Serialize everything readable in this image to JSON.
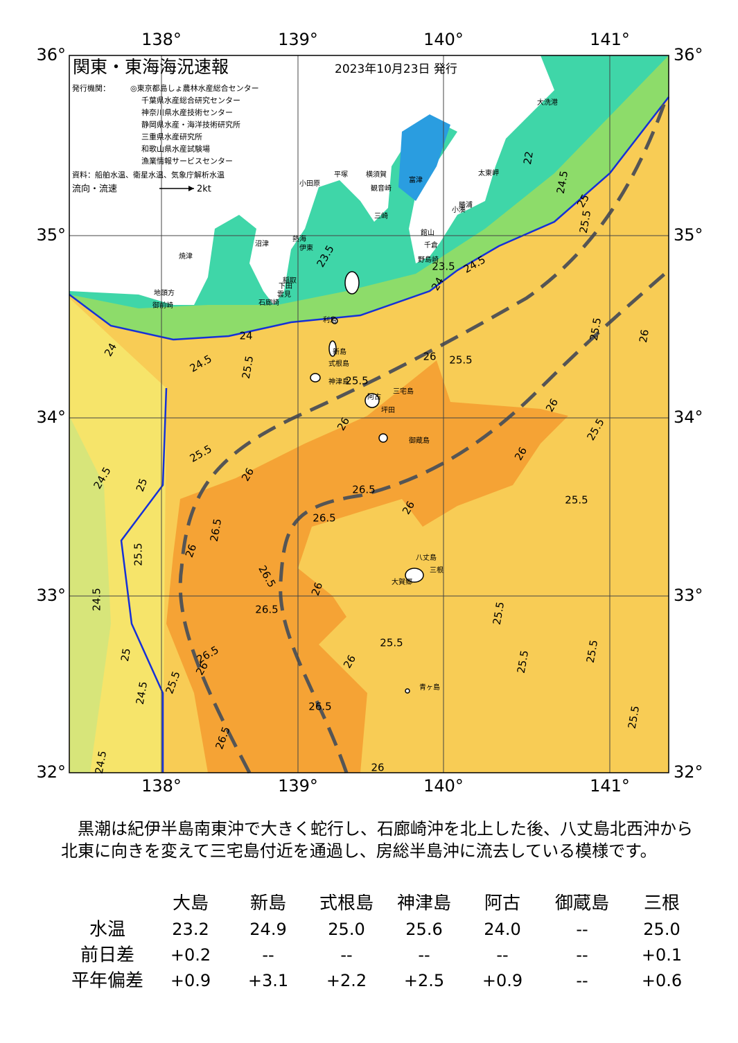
{
  "map": {
    "title": "関東・東海海況速報",
    "date": "2023年10月23日 発行",
    "issuer_label": "発行機関：",
    "issuers": [
      "◎東京都島しょ農林水産総合センター",
      "千葉県水産総合研究センター",
      "神奈川県水産技術センター",
      "静岡県水産・海洋技術研究所",
      "三重県水産研究所",
      "和歌山県水産試験場",
      "漁業情報サービスセンター"
    ],
    "source": "資料：船舶水温、衛星水温、気象庁解析水温",
    "flow_label": "流向・流速",
    "flow_scale": "2kt",
    "lon_labels": [
      "138°",
      "139°",
      "140°",
      "141°"
    ],
    "lat_labels": [
      "36°",
      "35°",
      "34°",
      "33°",
      "32°"
    ],
    "place_names": [
      "大洗港",
      "太東岬",
      "勝浦",
      "小湊",
      "館山",
      "千倉",
      "野島崎",
      "富津",
      "観音崎",
      "横須賀",
      "三崎",
      "平塚",
      "小田原",
      "熱海",
      "伊東",
      "稲取",
      "下田",
      "雲見",
      "石廊崎",
      "沼津",
      "焼津",
      "地頭方",
      "御前崎",
      "利島",
      "新島",
      "式根島",
      "神津島",
      "三宅島",
      "阿古",
      "坪田",
      "御蔵島",
      "八丈島",
      "三根",
      "大賀郷",
      "青ヶ島"
    ],
    "contour_labels": [
      "24",
      "24",
      "24.5",
      "25.5",
      "25.5",
      "26",
      "25.5",
      "24.5",
      "25",
      "25.5",
      "26",
      "26",
      "26.5",
      "26.5",
      "26",
      "26",
      "25.5",
      "26",
      "25.5",
      "25.5",
      "26",
      "26",
      "26.5",
      "25.5",
      "26.5",
      "26",
      "26.5",
      "24.5",
      "25",
      "26.5",
      "26",
      "25.5",
      "24.5",
      "26",
      "25.5",
      "25.5",
      "25.5",
      "25.5",
      "25.5",
      "26.5",
      "26.5",
      "24.5",
      "25.5",
      "25",
      "24.5",
      "22",
      "23.5",
      "24",
      "23.5",
      "24.5",
      "26"
    ]
  },
  "summary": "黒潮は紀伊半島南東沖で大きく蛇行し、石廊崎沖を北上した後、八丈島北西沖から北東に向きを変えて三宅島付近を通過し、房総半島沖に流去している模様です。",
  "table": {
    "columns": [
      "大島",
      "新島",
      "式根島",
      "神津島",
      "阿古",
      "御蔵島",
      "三根"
    ],
    "rows": [
      {
        "label": "水温",
        "values": [
          "23.2",
          "24.9",
          "25.0",
          "25.6",
          "24.0",
          "--",
          "25.0"
        ]
      },
      {
        "label": "前日差",
        "values": [
          "+0.2",
          "--",
          "--",
          "--",
          "--",
          "--",
          "+0.1"
        ]
      },
      {
        "label": "平年偏差",
        "values": [
          "+0.9",
          "+3.1",
          "+2.2",
          "+2.5",
          "+0.9",
          "--",
          "+0.6"
        ]
      }
    ]
  }
}
